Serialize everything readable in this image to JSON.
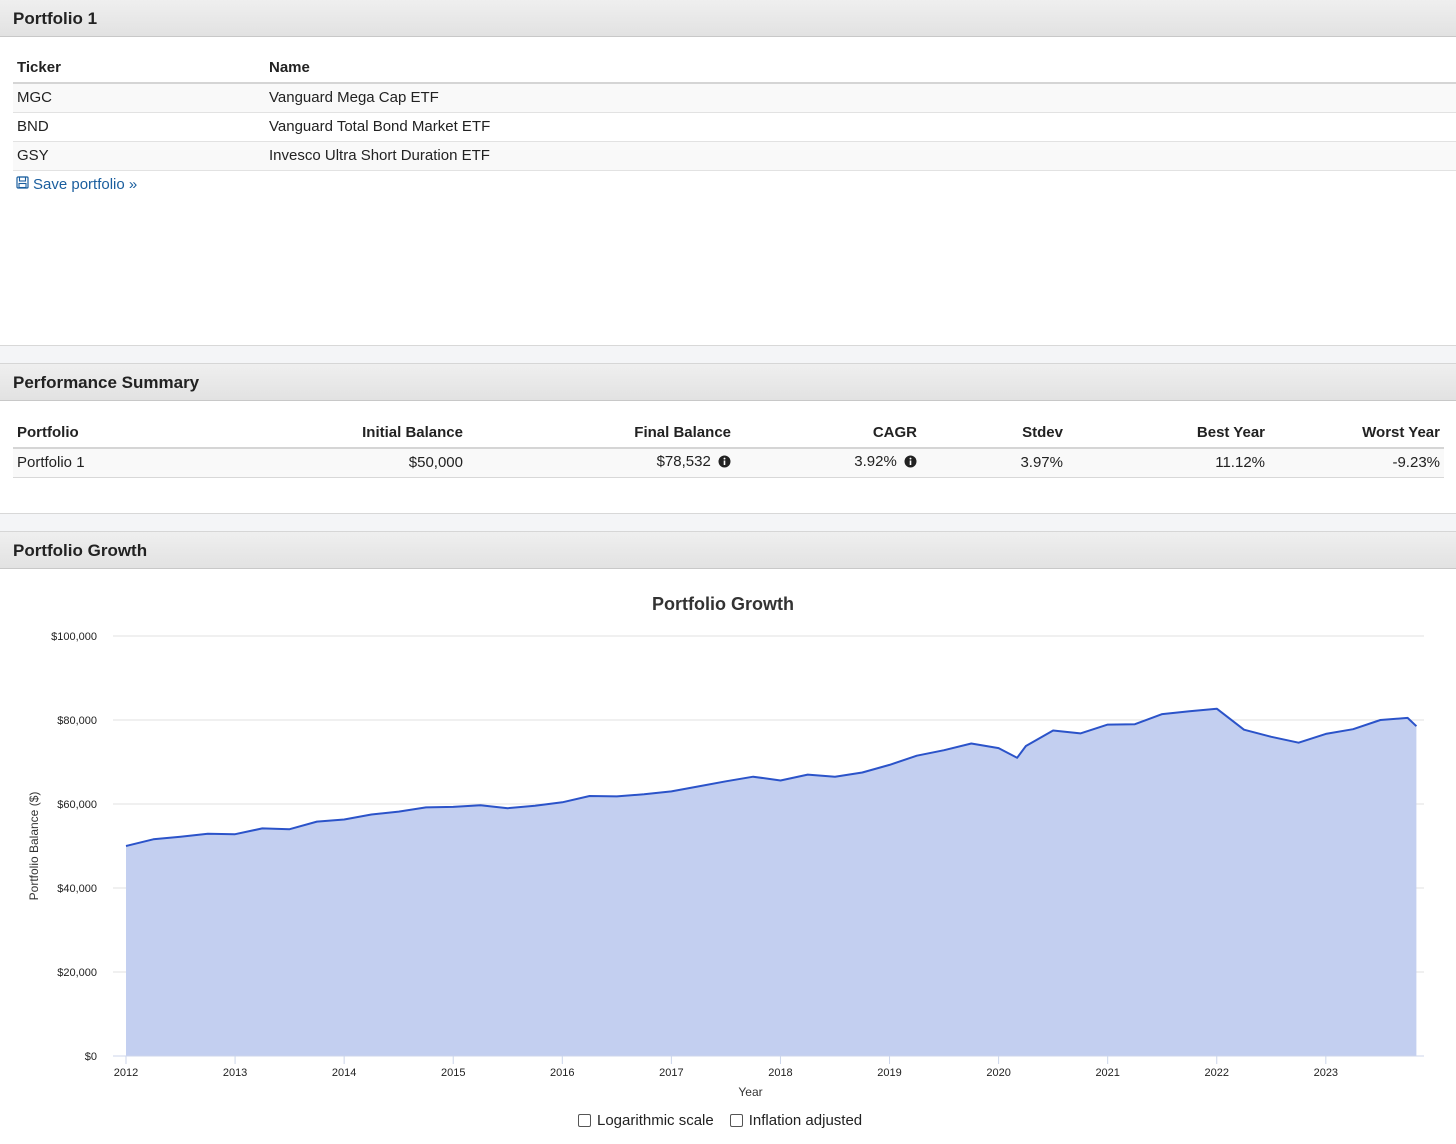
{
  "portfolio_section": {
    "title": "Portfolio 1",
    "columns": [
      "Ticker",
      "Name"
    ],
    "rows": [
      {
        "ticker": "MGC",
        "name": "Vanguard Mega Cap ETF"
      },
      {
        "ticker": "BND",
        "name": "Vanguard Total Bond Market ETF"
      },
      {
        "ticker": "GSY",
        "name": "Invesco Ultra Short Duration ETF"
      }
    ],
    "save_link": "Save portfolio »"
  },
  "performance_section": {
    "title": "Performance Summary",
    "columns": [
      "Portfolio",
      "Initial Balance",
      "Final Balance",
      "CAGR",
      "Stdev",
      "Best Year",
      "Worst Year"
    ],
    "row": {
      "portfolio": "Portfolio 1",
      "initial_balance": "$50,000",
      "final_balance": "$78,532",
      "cagr": "3.92%",
      "stdev": "3.97%",
      "best_year": "11.12%",
      "worst_year": "-9.23%"
    }
  },
  "growth_section": {
    "title": "Portfolio Growth",
    "options": {
      "log_scale": "Logarithmic scale",
      "inflation": "Inflation adjusted"
    }
  },
  "colors": {
    "line": "#2b53c9",
    "fill": "#c3cff0",
    "link": "#1a5e9e"
  },
  "chart_data": {
    "type": "area",
    "title": "Portfolio Growth",
    "xlabel": "Year",
    "ylabel": "Portfolio Balance ($)",
    "ylim": [
      0,
      100000
    ],
    "yticks": [
      "$0",
      "$20,000",
      "$40,000",
      "$60,000",
      "$80,000",
      "$100,000"
    ],
    "ytick_values": [
      0,
      20000,
      40000,
      60000,
      80000,
      100000
    ],
    "xticks": [
      "2012",
      "2013",
      "2014",
      "2015",
      "2016",
      "2017",
      "2018",
      "2019",
      "2020",
      "2021",
      "2022",
      "2023"
    ],
    "xlim": [
      2012,
      2023.9
    ],
    "grid": true,
    "series": [
      {
        "x": [
          2012.0,
          2012.25,
          2012.5,
          2012.75,
          2013.0,
          2013.25,
          2013.5,
          2013.75,
          2014.0,
          2014.25,
          2014.5,
          2014.75,
          2015.0,
          2015.25,
          2015.5,
          2015.75,
          2016.0,
          2016.25,
          2016.5,
          2016.75,
          2017.0,
          2017.25,
          2017.5,
          2017.75,
          2018.0,
          2018.25,
          2018.5,
          2018.75,
          2019.0,
          2019.25,
          2019.5,
          2019.75,
          2020.0,
          2020.17,
          2020.25,
          2020.5,
          2020.75,
          2021.0,
          2021.25,
          2021.5,
          2021.75,
          2022.0,
          2022.25,
          2022.5,
          2022.75,
          2023.0,
          2023.25,
          2023.5,
          2023.75,
          2023.83
        ],
        "y": [
          50000,
          51600,
          52200,
          52900,
          52800,
          54200,
          54000,
          55800,
          56300,
          57500,
          58200,
          59200,
          59300,
          59700,
          59000,
          59600,
          60400,
          61900,
          61800,
          62300,
          63000,
          64200,
          65400,
          66500,
          65600,
          67000,
          66500,
          67500,
          69300,
          71500,
          72800,
          74400,
          73300,
          71000,
          73800,
          77500,
          76800,
          78900,
          79000,
          81400,
          82100,
          82700,
          77700,
          76000,
          74600,
          76700,
          77800,
          80000,
          80500,
          78532
        ]
      }
    ]
  }
}
